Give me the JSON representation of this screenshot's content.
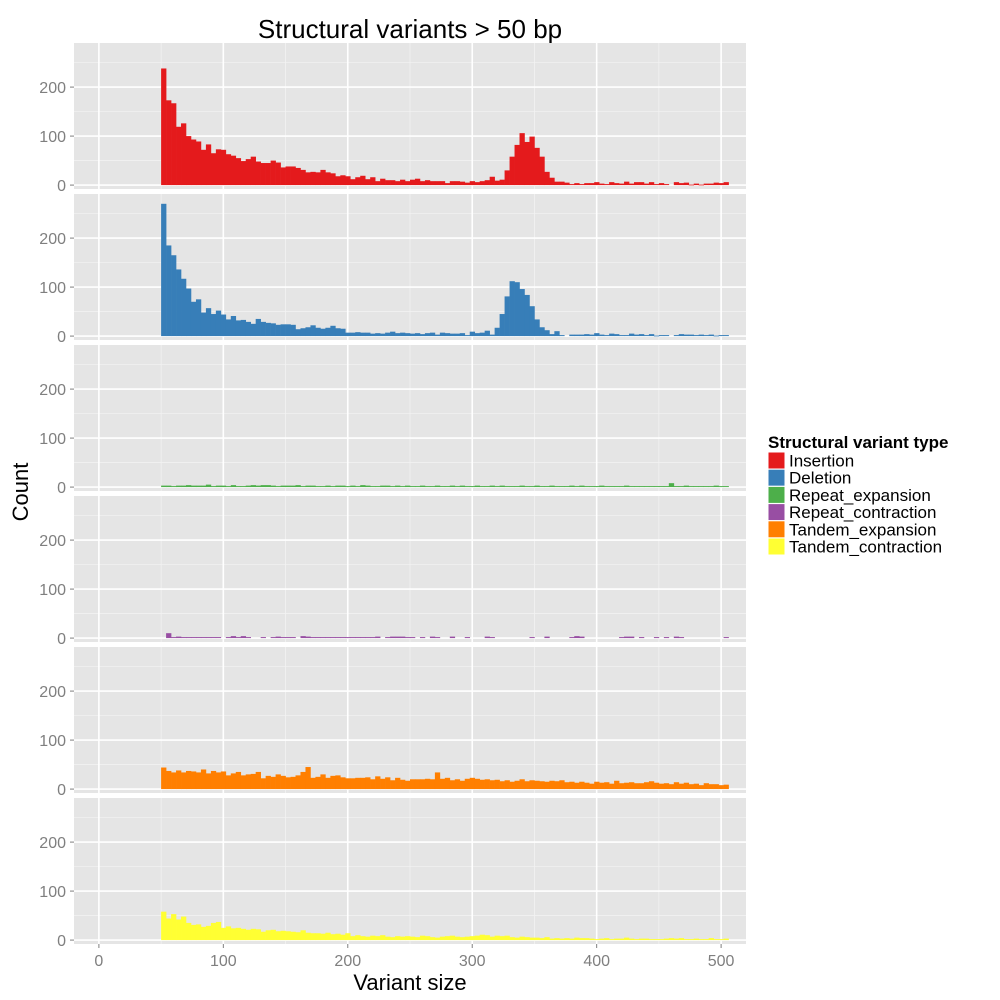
{
  "chart_data": {
    "type": "bar",
    "title": "Structural variants > 50 bp",
    "xlabel": "Variant size",
    "ylabel": "Count",
    "xlim": [
      -20,
      520
    ],
    "ylim": [
      -8,
      290
    ],
    "x_ticks": [
      0,
      100,
      200,
      300,
      400,
      500
    ],
    "y_ticks": [
      0,
      100,
      200
    ],
    "bin_start": 50,
    "bin_width": 4,
    "grid": true,
    "facets": "stacked vertically, shared axes",
    "legend": {
      "title": "Structural variant type",
      "position": "right"
    },
    "series": [
      {
        "name": "Insertion",
        "color": "#E41A1C",
        "values": [
          238,
          173,
          167,
          119,
          126,
          100,
          93,
          89,
          72,
          83,
          65,
          73,
          72,
          63,
          60,
          55,
          49,
          53,
          58,
          48,
          45,
          45,
          50,
          46,
          36,
          38,
          38,
          35,
          31,
          26,
          27,
          26,
          31,
          26,
          24,
          18,
          20,
          18,
          12,
          16,
          19,
          12,
          16,
          8,
          13,
          10,
          10,
          8,
          11,
          8,
          11,
          13,
          8,
          10,
          8,
          8,
          8,
          4,
          8,
          8,
          7,
          5,
          8,
          6,
          8,
          10,
          17,
          9,
          11,
          30,
          58,
          82,
          106,
          88,
          99,
          76,
          58,
          27,
          15,
          7,
          7,
          5,
          2,
          4,
          2,
          4,
          4,
          6,
          3,
          2,
          6,
          4,
          3,
          7,
          3,
          6,
          6,
          3,
          6,
          2,
          4,
          2,
          0,
          6,
          4,
          5,
          1,
          3,
          1,
          3,
          3,
          5,
          4,
          6
        ]
      },
      {
        "name": "Deletion",
        "color": "#377EB8",
        "values": [
          270,
          185,
          165,
          136,
          117,
          97,
          70,
          75,
          48,
          57,
          45,
          52,
          44,
          34,
          41,
          32,
          33,
          29,
          25,
          35,
          29,
          27,
          26,
          23,
          24,
          24,
          23,
          14,
          16,
          18,
          22,
          17,
          15,
          17,
          21,
          16,
          15,
          7,
          7,
          8,
          7,
          7,
          5,
          6,
          5,
          7,
          9,
          6,
          7,
          6,
          5,
          6,
          4,
          6,
          7,
          3,
          7,
          6,
          5,
          5,
          6,
          2,
          9,
          6,
          7,
          11,
          3,
          17,
          45,
          81,
          112,
          110,
          96,
          84,
          61,
          34,
          18,
          12,
          4,
          10,
          2,
          0,
          3,
          3,
          3,
          4,
          3,
          6,
          3,
          2,
          5,
          4,
          2,
          2,
          5,
          3,
          4,
          2,
          4,
          1,
          2,
          2,
          0,
          2,
          4,
          3,
          3,
          2,
          3,
          2,
          3,
          1,
          2,
          2
        ]
      },
      {
        "name": "Repeat_expansion",
        "color": "#4DAF4A",
        "values": [
          3,
          3,
          2,
          3,
          3,
          4,
          3,
          3,
          3,
          5,
          2,
          3,
          3,
          2,
          4,
          2,
          2,
          3,
          4,
          3,
          4,
          4,
          3,
          2,
          3,
          3,
          3,
          4,
          2,
          3,
          3,
          2,
          2,
          3,
          2,
          3,
          3,
          2,
          3,
          2,
          4,
          3,
          2,
          2,
          3,
          3,
          2,
          3,
          2,
          3,
          2,
          2,
          3,
          2,
          2,
          3,
          2,
          2,
          3,
          2,
          3,
          2,
          2,
          3,
          2,
          2,
          3,
          2,
          3,
          2,
          2,
          2,
          3,
          2,
          2,
          3,
          2,
          2,
          3,
          2,
          2,
          2,
          3,
          2,
          3,
          2,
          2,
          2,
          3,
          2,
          2,
          2,
          2,
          3,
          2,
          2,
          2,
          2,
          2,
          2,
          2,
          2,
          8,
          2,
          2,
          3,
          2,
          2,
          2,
          2,
          2,
          3,
          2,
          2
        ]
      },
      {
        "name": "Repeat_contraction",
        "color": "#984EA3",
        "values": [
          0,
          10,
          2,
          3,
          2,
          2,
          2,
          2,
          2,
          2,
          2,
          2,
          0,
          2,
          4,
          2,
          4,
          2,
          0,
          0,
          2,
          0,
          2,
          3,
          2,
          2,
          2,
          0,
          4,
          3,
          2,
          2,
          2,
          2,
          2,
          2,
          2,
          2,
          2,
          2,
          2,
          2,
          2,
          3,
          0,
          2,
          3,
          3,
          3,
          2,
          2,
          0,
          2,
          0,
          3,
          2,
          0,
          0,
          3,
          0,
          0,
          2,
          0,
          0,
          0,
          3,
          2,
          0,
          0,
          0,
          0,
          0,
          0,
          0,
          2,
          0,
          0,
          3,
          0,
          0,
          0,
          0,
          2,
          4,
          3,
          0,
          0,
          0,
          0,
          0,
          0,
          0,
          2,
          3,
          3,
          0,
          2,
          0,
          0,
          2,
          0,
          2,
          0,
          3,
          2,
          0,
          0,
          0,
          0,
          0,
          0,
          0,
          0,
          2
        ]
      },
      {
        "name": "Tandem_expansion",
        "color": "#FF7F00",
        "values": [
          44,
          37,
          34,
          38,
          34,
          37,
          36,
          34,
          40,
          32,
          37,
          34,
          36,
          28,
          32,
          35,
          28,
          30,
          31,
          35,
          22,
          27,
          25,
          30,
          27,
          24,
          25,
          28,
          35,
          45,
          23,
          25,
          30,
          23,
          27,
          28,
          24,
          22,
          22,
          23,
          23,
          24,
          20,
          26,
          21,
          24,
          18,
          23,
          19,
          17,
          20,
          20,
          20,
          21,
          20,
          34,
          21,
          23,
          18,
          20,
          17,
          21,
          23,
          21,
          19,
          20,
          18,
          19,
          16,
          18,
          15,
          17,
          20,
          16,
          18,
          17,
          16,
          15,
          17,
          16,
          18,
          14,
          15,
          13,
          15,
          13,
          11,
          15,
          13,
          14,
          11,
          17,
          12,
          13,
          14,
          12,
          12,
          14,
          16,
          13,
          11,
          12,
          10,
          14,
          11,
          13,
          10,
          11,
          8,
          12,
          10,
          10,
          8,
          9
        ]
      },
      {
        "name": "Tandem_contraction",
        "color": "#FFFF33",
        "values": [
          58,
          44,
          53,
          42,
          48,
          35,
          31,
          32,
          27,
          29,
          35,
          37,
          25,
          28,
          24,
          25,
          23,
          21,
          23,
          22,
          17,
          20,
          21,
          18,
          19,
          18,
          17,
          16,
          20,
          15,
          14,
          14,
          13,
          15,
          12,
          13,
          11,
          14,
          8,
          10,
          8,
          7,
          9,
          8,
          10,
          7,
          6,
          8,
          7,
          8,
          7,
          6,
          9,
          8,
          6,
          5,
          7,
          8,
          9,
          7,
          6,
          7,
          8,
          9,
          11,
          10,
          7,
          9,
          8,
          9,
          6,
          5,
          7,
          6,
          5,
          5,
          4,
          6,
          3,
          4,
          3,
          4,
          3,
          5,
          4,
          4,
          3,
          2,
          3,
          4,
          2,
          3,
          3,
          5,
          3,
          2,
          3,
          3,
          2,
          2,
          2,
          3,
          4,
          3,
          4,
          2,
          2,
          3,
          2,
          2,
          4,
          2,
          2,
          3
        ]
      }
    ]
  }
}
